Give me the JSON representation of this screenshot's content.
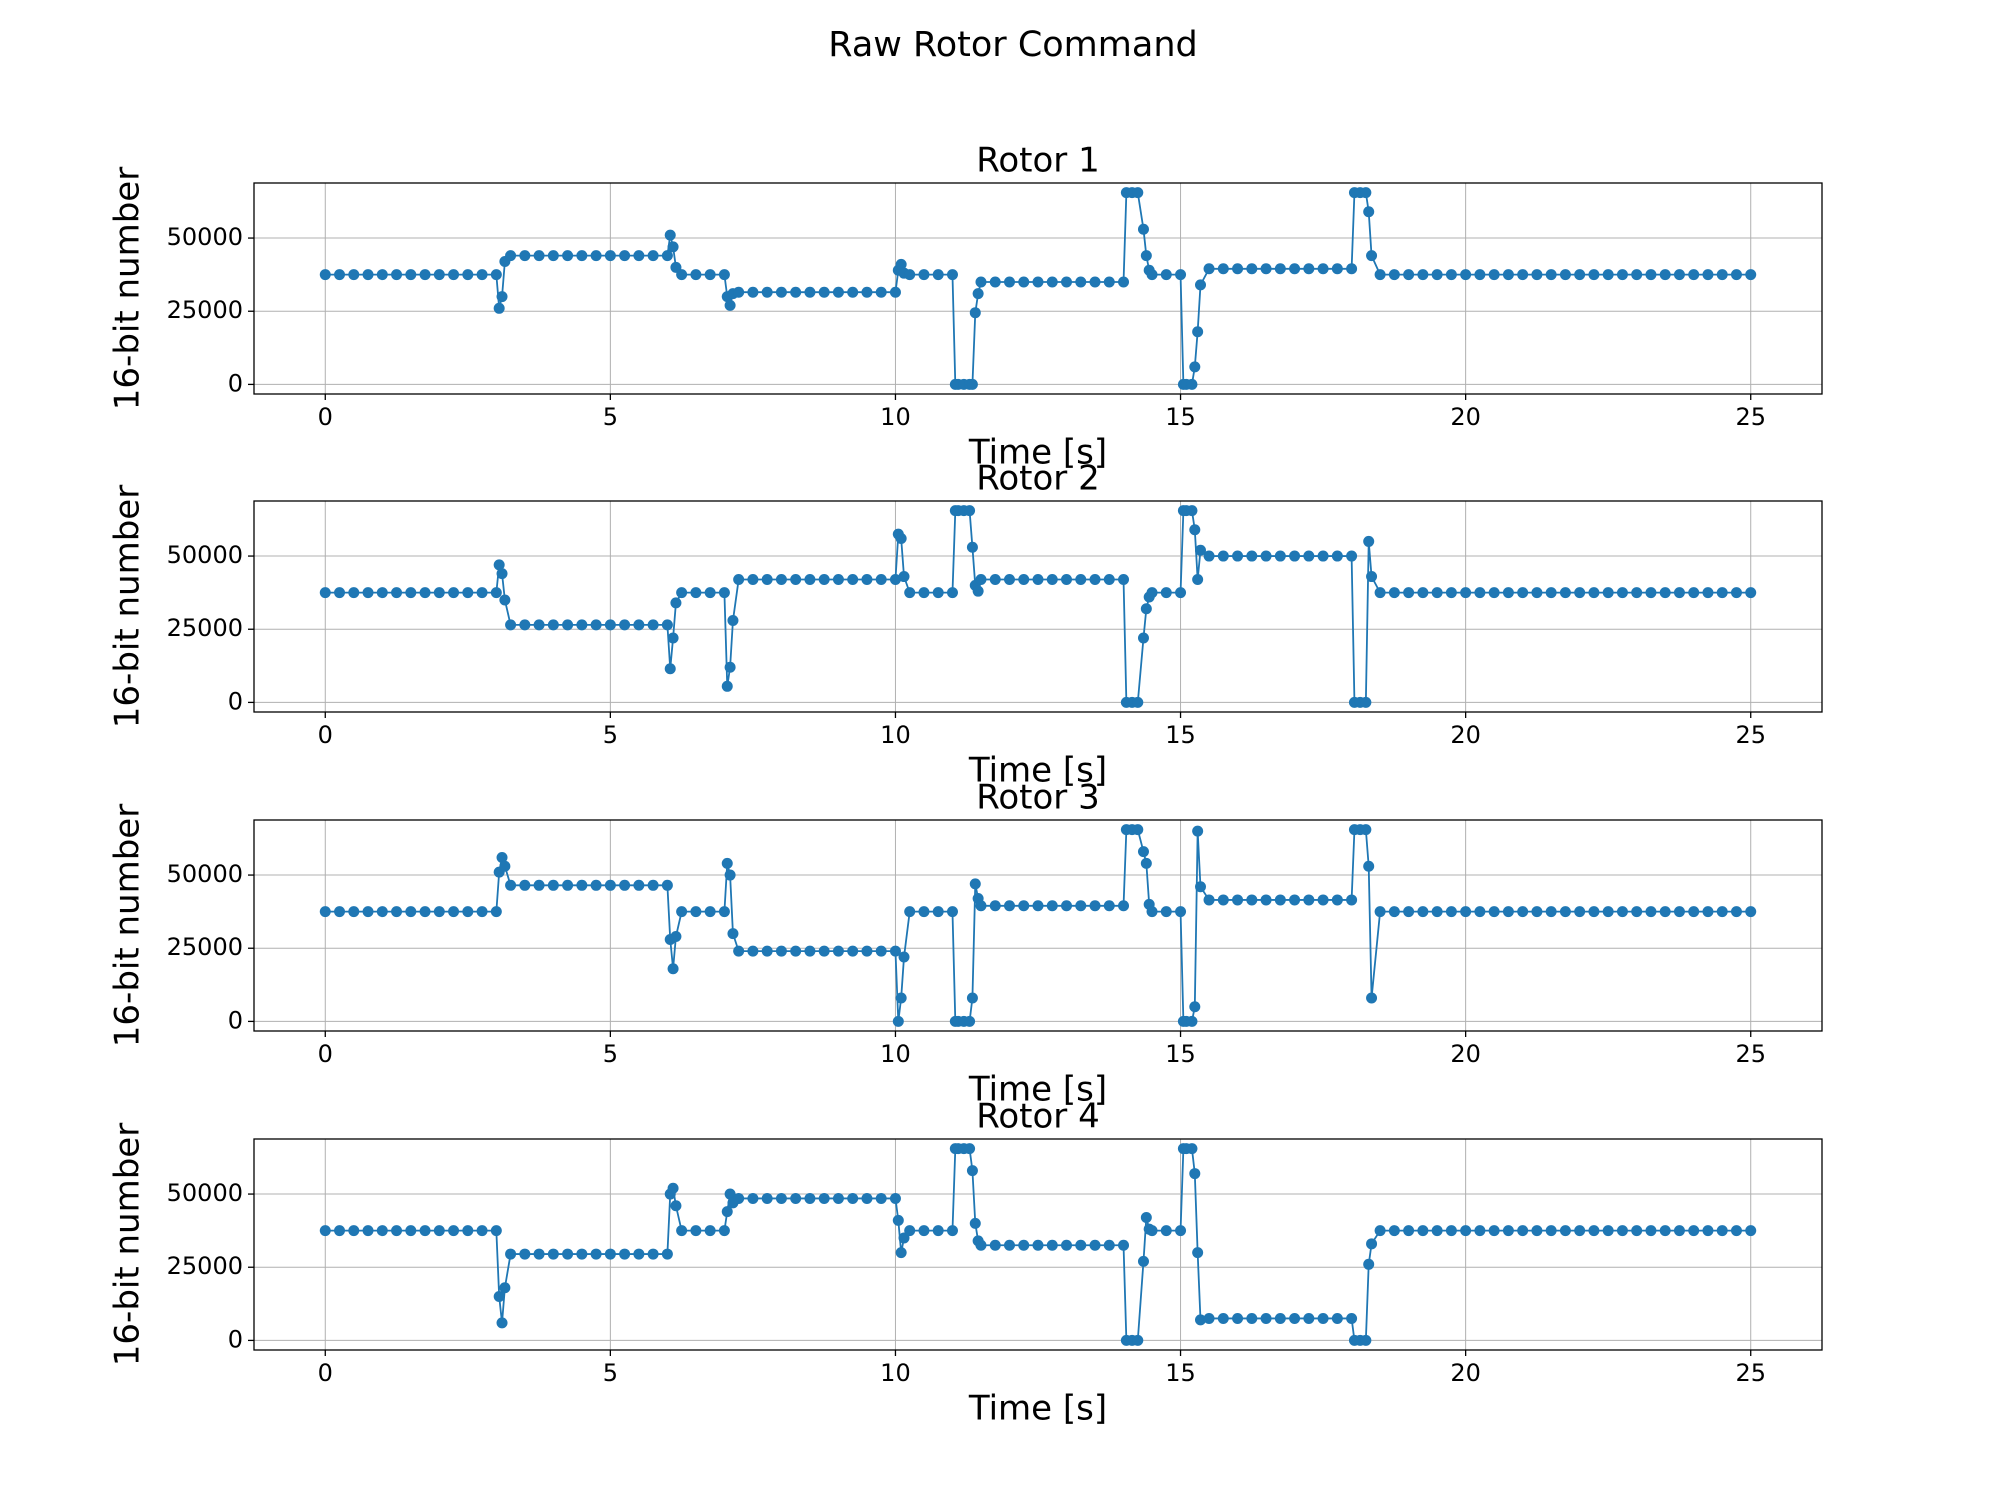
{
  "title": "Raw Rotor Command",
  "chart_data": [
    {
      "type": "line",
      "title": "Rotor 1",
      "xlabel": "Time [s]",
      "ylabel": "16-bit number",
      "xlim": [
        -1.25,
        26.25
      ],
      "ylim": [
        -3277,
        68812
      ],
      "xticks": [
        0,
        5,
        10,
        15,
        20,
        25
      ],
      "yticks": [
        0,
        25000,
        50000
      ],
      "grid": true,
      "marker": true,
      "x": [
        0,
        0.25,
        0.5,
        0.75,
        1,
        1.25,
        1.5,
        1.75,
        2,
        2.25,
        2.5,
        2.75,
        3,
        3.05,
        3.1,
        3.15,
        3.25,
        3.5,
        3.75,
        4,
        4.25,
        4.5,
        4.75,
        5,
        5.25,
        5.5,
        5.75,
        6,
        6.05,
        6.1,
        6.15,
        6.25,
        6.5,
        6.75,
        7,
        7.05,
        7.1,
        7.15,
        7.25,
        7.5,
        7.75,
        8,
        8.25,
        8.5,
        8.75,
        9,
        9.25,
        9.5,
        9.75,
        10,
        10.05,
        10.1,
        10.15,
        10.25,
        10.5,
        10.75,
        11,
        11.05,
        11.1,
        11.2,
        11.3,
        11.35,
        11.4,
        11.45,
        11.5,
        11.75,
        12,
        12.25,
        12.5,
        12.75,
        13,
        13.25,
        13.5,
        13.75,
        14,
        14.05,
        14.15,
        14.25,
        14.35,
        14.4,
        14.45,
        14.5,
        14.75,
        15,
        15.05,
        15.1,
        15.2,
        15.25,
        15.3,
        15.35,
        15.5,
        15.75,
        16,
        16.25,
        16.5,
        16.75,
        17,
        17.25,
        17.5,
        17.75,
        18,
        18.05,
        18.15,
        18.25,
        18.3,
        18.35,
        18.5,
        18.75,
        19,
        19.25,
        19.5,
        19.75,
        20,
        20.25,
        20.5,
        20.75,
        21,
        21.25,
        21.5,
        21.75,
        22,
        22.25,
        22.5,
        22.75,
        23,
        23.25,
        23.5,
        23.75,
        24,
        24.25,
        24.5,
        24.75,
        25
      ],
      "series": [
        {
          "color": "#1f77b4",
          "values": [
            37500,
            37500,
            37500,
            37500,
            37500,
            37500,
            37500,
            37500,
            37500,
            37500,
            37500,
            37500,
            37500,
            26000,
            30000,
            42000,
            44000,
            44000,
            44000,
            44000,
            44000,
            44000,
            44000,
            44000,
            44000,
            44000,
            44000,
            44000,
            51000,
            47000,
            40000,
            37500,
            37500,
            37500,
            37500,
            30000,
            27000,
            31000,
            31500,
            31500,
            31500,
            31500,
            31500,
            31500,
            31500,
            31500,
            31500,
            31500,
            31500,
            31500,
            39000,
            41000,
            38000,
            37500,
            37500,
            37500,
            37500,
            0,
            0,
            0,
            0,
            0,
            24500,
            31000,
            35000,
            35000,
            35000,
            35000,
            35000,
            35000,
            35000,
            35000,
            35000,
            35000,
            35000,
            65535,
            65535,
            65535,
            53000,
            44000,
            39000,
            37500,
            37500,
            37500,
            0,
            0,
            0,
            6000,
            18000,
            34000,
            39500,
            39500,
            39500,
            39500,
            39500,
            39500,
            39500,
            39500,
            39500,
            39500,
            39500,
            65535,
            65535,
            65535,
            59000,
            44000,
            37500,
            37500,
            37500,
            37500,
            37500,
            37500,
            37500,
            37500,
            37500,
            37500,
            37500,
            37500,
            37500,
            37500,
            37500,
            37500,
            37500,
            37500,
            37500,
            37500,
            37500,
            37500,
            37500,
            37500,
            37500,
            37500,
            37500
          ]
        }
      ]
    },
    {
      "type": "line",
      "title": "Rotor 2",
      "xlabel": "Time [s]",
      "ylabel": "16-bit number",
      "xlim": [
        -1.25,
        26.25
      ],
      "ylim": [
        -3277,
        68812
      ],
      "xticks": [
        0,
        5,
        10,
        15,
        20,
        25
      ],
      "yticks": [
        0,
        25000,
        50000
      ],
      "grid": true,
      "marker": true,
      "x": [
        0,
        0.25,
        0.5,
        0.75,
        1,
        1.25,
        1.5,
        1.75,
        2,
        2.25,
        2.5,
        2.75,
        3,
        3.05,
        3.1,
        3.15,
        3.25,
        3.5,
        3.75,
        4,
        4.25,
        4.5,
        4.75,
        5,
        5.25,
        5.5,
        5.75,
        6,
        6.05,
        6.1,
        6.15,
        6.25,
        6.5,
        6.75,
        7,
        7.05,
        7.1,
        7.15,
        7.25,
        7.5,
        7.75,
        8,
        8.25,
        8.5,
        8.75,
        9,
        9.25,
        9.5,
        9.75,
        10,
        10.05,
        10.1,
        10.15,
        10.25,
        10.5,
        10.75,
        11,
        11.05,
        11.1,
        11.2,
        11.3,
        11.35,
        11.4,
        11.45,
        11.5,
        11.75,
        12,
        12.25,
        12.5,
        12.75,
        13,
        13.25,
        13.5,
        13.75,
        14,
        14.05,
        14.15,
        14.25,
        14.35,
        14.4,
        14.45,
        14.5,
        14.75,
        15,
        15.05,
        15.1,
        15.2,
        15.25,
        15.3,
        15.35,
        15.5,
        15.75,
        16,
        16.25,
        16.5,
        16.75,
        17,
        17.25,
        17.5,
        17.75,
        18,
        18.05,
        18.15,
        18.25,
        18.3,
        18.35,
        18.5,
        18.75,
        19,
        19.25,
        19.5,
        19.75,
        20,
        20.25,
        20.5,
        20.75,
        21,
        21.25,
        21.5,
        21.75,
        22,
        22.25,
        22.5,
        22.75,
        23,
        23.25,
        23.5,
        23.75,
        24,
        24.25,
        24.5,
        24.75,
        25
      ],
      "series": [
        {
          "color": "#1f77b4",
          "values": [
            37500,
            37500,
            37500,
            37500,
            37500,
            37500,
            37500,
            37500,
            37500,
            37500,
            37500,
            37500,
            37500,
            47000,
            44000,
            35000,
            26500,
            26500,
            26500,
            26500,
            26500,
            26500,
            26500,
            26500,
            26500,
            26500,
            26500,
            26500,
            11500,
            22000,
            34000,
            37500,
            37500,
            37500,
            37500,
            5500,
            12000,
            28000,
            42000,
            42000,
            42000,
            42000,
            42000,
            42000,
            42000,
            42000,
            42000,
            42000,
            42000,
            42000,
            57500,
            56000,
            43000,
            37500,
            37500,
            37500,
            37500,
            65535,
            65535,
            65535,
            65535,
            53000,
            40000,
            38000,
            42000,
            42000,
            42000,
            42000,
            42000,
            42000,
            42000,
            42000,
            42000,
            42000,
            42000,
            0,
            0,
            0,
            22000,
            32000,
            36000,
            37500,
            37500,
            37500,
            65535,
            65535,
            65535,
            59000,
            42000,
            52000,
            50000,
            50000,
            50000,
            50000,
            50000,
            50000,
            50000,
            50000,
            50000,
            50000,
            50000,
            0,
            0,
            0,
            55000,
            43000,
            37500,
            37500,
            37500,
            37500,
            37500,
            37500,
            37500,
            37500,
            37500,
            37500,
            37500,
            37500,
            37500,
            37500,
            37500,
            37500,
            37500,
            37500,
            37500,
            37500,
            37500,
            37500,
            37500,
            37500,
            37500,
            37500,
            37500
          ]
        }
      ]
    },
    {
      "type": "line",
      "title": "Rotor 3",
      "xlabel": "Time [s]",
      "ylabel": "16-bit number",
      "xlim": [
        -1.25,
        26.25
      ],
      "ylim": [
        -3277,
        68812
      ],
      "xticks": [
        0,
        5,
        10,
        15,
        20,
        25
      ],
      "yticks": [
        0,
        25000,
        50000
      ],
      "grid": true,
      "marker": true,
      "x": [
        0,
        0.25,
        0.5,
        0.75,
        1,
        1.25,
        1.5,
        1.75,
        2,
        2.25,
        2.5,
        2.75,
        3,
        3.05,
        3.1,
        3.15,
        3.25,
        3.5,
        3.75,
        4,
        4.25,
        4.5,
        4.75,
        5,
        5.25,
        5.5,
        5.75,
        6,
        6.05,
        6.1,
        6.15,
        6.25,
        6.5,
        6.75,
        7,
        7.05,
        7.1,
        7.15,
        7.25,
        7.5,
        7.75,
        8,
        8.25,
        8.5,
        8.75,
        9,
        9.25,
        9.5,
        9.75,
        10,
        10.05,
        10.1,
        10.15,
        10.25,
        10.5,
        10.75,
        11,
        11.05,
        11.1,
        11.2,
        11.3,
        11.35,
        11.4,
        11.45,
        11.5,
        11.75,
        12,
        12.25,
        12.5,
        12.75,
        13,
        13.25,
        13.5,
        13.75,
        14,
        14.05,
        14.15,
        14.25,
        14.35,
        14.4,
        14.45,
        14.5,
        14.75,
        15,
        15.05,
        15.1,
        15.2,
        15.25,
        15.3,
        15.35,
        15.5,
        15.75,
        16,
        16.25,
        16.5,
        16.75,
        17,
        17.25,
        17.5,
        17.75,
        18,
        18.05,
        18.15,
        18.25,
        18.3,
        18.35,
        18.5,
        18.75,
        19,
        19.25,
        19.5,
        19.75,
        20,
        20.25,
        20.5,
        20.75,
        21,
        21.25,
        21.5,
        21.75,
        22,
        22.25,
        22.5,
        22.75,
        23,
        23.25,
        23.5,
        23.75,
        24,
        24.25,
        24.5,
        24.75,
        25
      ],
      "series": [
        {
          "color": "#1f77b4",
          "values": [
            37500,
            37500,
            37500,
            37500,
            37500,
            37500,
            37500,
            37500,
            37500,
            37500,
            37500,
            37500,
            37500,
            51000,
            56000,
            53000,
            46500,
            46500,
            46500,
            46500,
            46500,
            46500,
            46500,
            46500,
            46500,
            46500,
            46500,
            46500,
            28000,
            18000,
            29000,
            37500,
            37500,
            37500,
            37500,
            54000,
            50000,
            30000,
            24000,
            24000,
            24000,
            24000,
            24000,
            24000,
            24000,
            24000,
            24000,
            24000,
            24000,
            24000,
            0,
            8000,
            22000,
            37500,
            37500,
            37500,
            37500,
            0,
            0,
            0,
            0,
            8000,
            47000,
            42000,
            39500,
            39500,
            39500,
            39500,
            39500,
            39500,
            39500,
            39500,
            39500,
            39500,
            39500,
            65535,
            65535,
            65535,
            58000,
            54000,
            40000,
            37500,
            37500,
            37500,
            0,
            0,
            0,
            5000,
            65000,
            46000,
            41500,
            41500,
            41500,
            41500,
            41500,
            41500,
            41500,
            41500,
            41500,
            41500,
            41500,
            65535,
            65535,
            65535,
            53000,
            8000,
            37500,
            37500,
            37500,
            37500,
            37500,
            37500,
            37500,
            37500,
            37500,
            37500,
            37500,
            37500,
            37500,
            37500,
            37500,
            37500,
            37500,
            37500,
            37500,
            37500,
            37500,
            37500,
            37500,
            37500,
            37500,
            37500,
            37500
          ]
        }
      ]
    },
    {
      "type": "line",
      "title": "Rotor 4",
      "xlabel": "Time [s]",
      "ylabel": "16-bit number",
      "xlim": [
        -1.25,
        26.25
      ],
      "ylim": [
        -3277,
        68812
      ],
      "xticks": [
        0,
        5,
        10,
        15,
        20,
        25
      ],
      "yticks": [
        0,
        25000,
        50000
      ],
      "grid": true,
      "marker": true,
      "x": [
        0,
        0.25,
        0.5,
        0.75,
        1,
        1.25,
        1.5,
        1.75,
        2,
        2.25,
        2.5,
        2.75,
        3,
        3.05,
        3.1,
        3.15,
        3.25,
        3.5,
        3.75,
        4,
        4.25,
        4.5,
        4.75,
        5,
        5.25,
        5.5,
        5.75,
        6,
        6.05,
        6.1,
        6.15,
        6.25,
        6.5,
        6.75,
        7,
        7.05,
        7.1,
        7.15,
        7.25,
        7.5,
        7.75,
        8,
        8.25,
        8.5,
        8.75,
        9,
        9.25,
        9.5,
        9.75,
        10,
        10.05,
        10.1,
        10.15,
        10.25,
        10.5,
        10.75,
        11,
        11.05,
        11.1,
        11.2,
        11.3,
        11.35,
        11.4,
        11.45,
        11.5,
        11.75,
        12,
        12.25,
        12.5,
        12.75,
        13,
        13.25,
        13.5,
        13.75,
        14,
        14.05,
        14.15,
        14.25,
        14.35,
        14.4,
        14.45,
        14.5,
        14.75,
        15,
        15.05,
        15.1,
        15.2,
        15.25,
        15.3,
        15.35,
        15.5,
        15.75,
        16,
        16.25,
        16.5,
        16.75,
        17,
        17.25,
        17.5,
        17.75,
        18,
        18.05,
        18.15,
        18.25,
        18.3,
        18.35,
        18.5,
        18.75,
        19,
        19.25,
        19.5,
        19.75,
        20,
        20.25,
        20.5,
        20.75,
        21,
        21.25,
        21.5,
        21.75,
        22,
        22.25,
        22.5,
        22.75,
        23,
        23.25,
        23.5,
        23.75,
        24,
        24.25,
        24.5,
        24.75,
        25
      ],
      "series": [
        {
          "color": "#1f77b4",
          "values": [
            37500,
            37500,
            37500,
            37500,
            37500,
            37500,
            37500,
            37500,
            37500,
            37500,
            37500,
            37500,
            37500,
            15000,
            6000,
            18000,
            29500,
            29500,
            29500,
            29500,
            29500,
            29500,
            29500,
            29500,
            29500,
            29500,
            29500,
            29500,
            50000,
            52000,
            46000,
            37500,
            37500,
            37500,
            37500,
            44000,
            50000,
            47000,
            48500,
            48500,
            48500,
            48500,
            48500,
            48500,
            48500,
            48500,
            48500,
            48500,
            48500,
            48500,
            41000,
            30000,
            35000,
            37500,
            37500,
            37500,
            37500,
            65535,
            65535,
            65535,
            65535,
            58000,
            40000,
            34000,
            32500,
            32500,
            32500,
            32500,
            32500,
            32500,
            32500,
            32500,
            32500,
            32500,
            32500,
            0,
            0,
            0,
            27000,
            42000,
            38000,
            37500,
            37500,
            37500,
            65535,
            65535,
            65535,
            57000,
            30000,
            7000,
            7500,
            7500,
            7500,
            7500,
            7500,
            7500,
            7500,
            7500,
            7500,
            7500,
            7500,
            0,
            0,
            0,
            26000,
            33000,
            37500,
            37500,
            37500,
            37500,
            37500,
            37500,
            37500,
            37500,
            37500,
            37500,
            37500,
            37500,
            37500,
            37500,
            37500,
            37500,
            37500,
            37500,
            37500,
            37500,
            37500,
            37500,
            37500,
            37500,
            37500,
            37500,
            37500
          ]
        }
      ]
    }
  ]
}
